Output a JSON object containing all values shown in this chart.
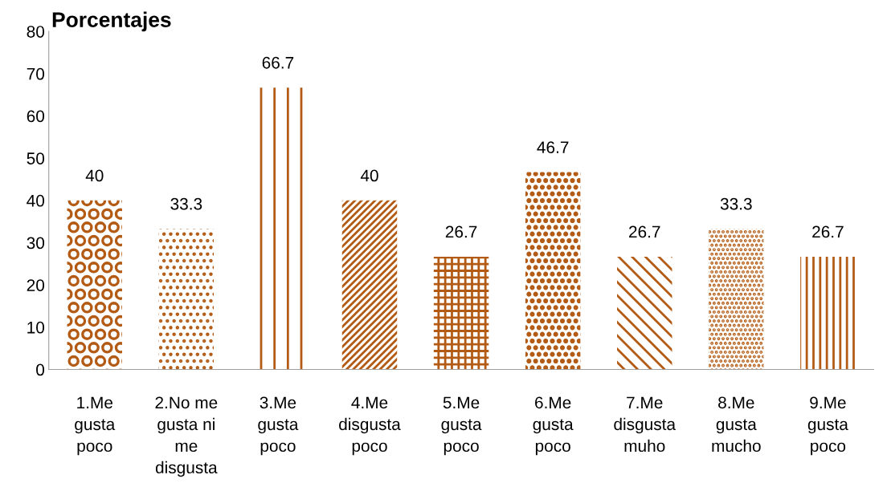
{
  "chart_data": {
    "type": "bar",
    "title": "Porcentajes",
    "categories": [
      "1.Me\ngusta\npoco",
      "2.No me\ngusta ni\nme\ndisgusta",
      "3.Me\ngusta\npoco",
      "4.Me\ndisgusta\npoco",
      "5.Me\ngusta\npoco",
      "6.Me\ngusta\npoco",
      "7.Me\ndisgusta\nmuho",
      "8.Me\ngusta\nmucho",
      "9.Me\ngusta\npoco"
    ],
    "values": [
      40,
      33.3,
      66.7,
      40,
      26.7,
      46.7,
      26.7,
      33.3,
      26.7
    ],
    "color": "#b35b14",
    "ylim": [
      0,
      80
    ],
    "yticks": [
      0,
      10,
      20,
      30,
      40,
      50,
      60,
      70,
      80
    ],
    "data_labels": true,
    "grid": false,
    "legend": false
  }
}
